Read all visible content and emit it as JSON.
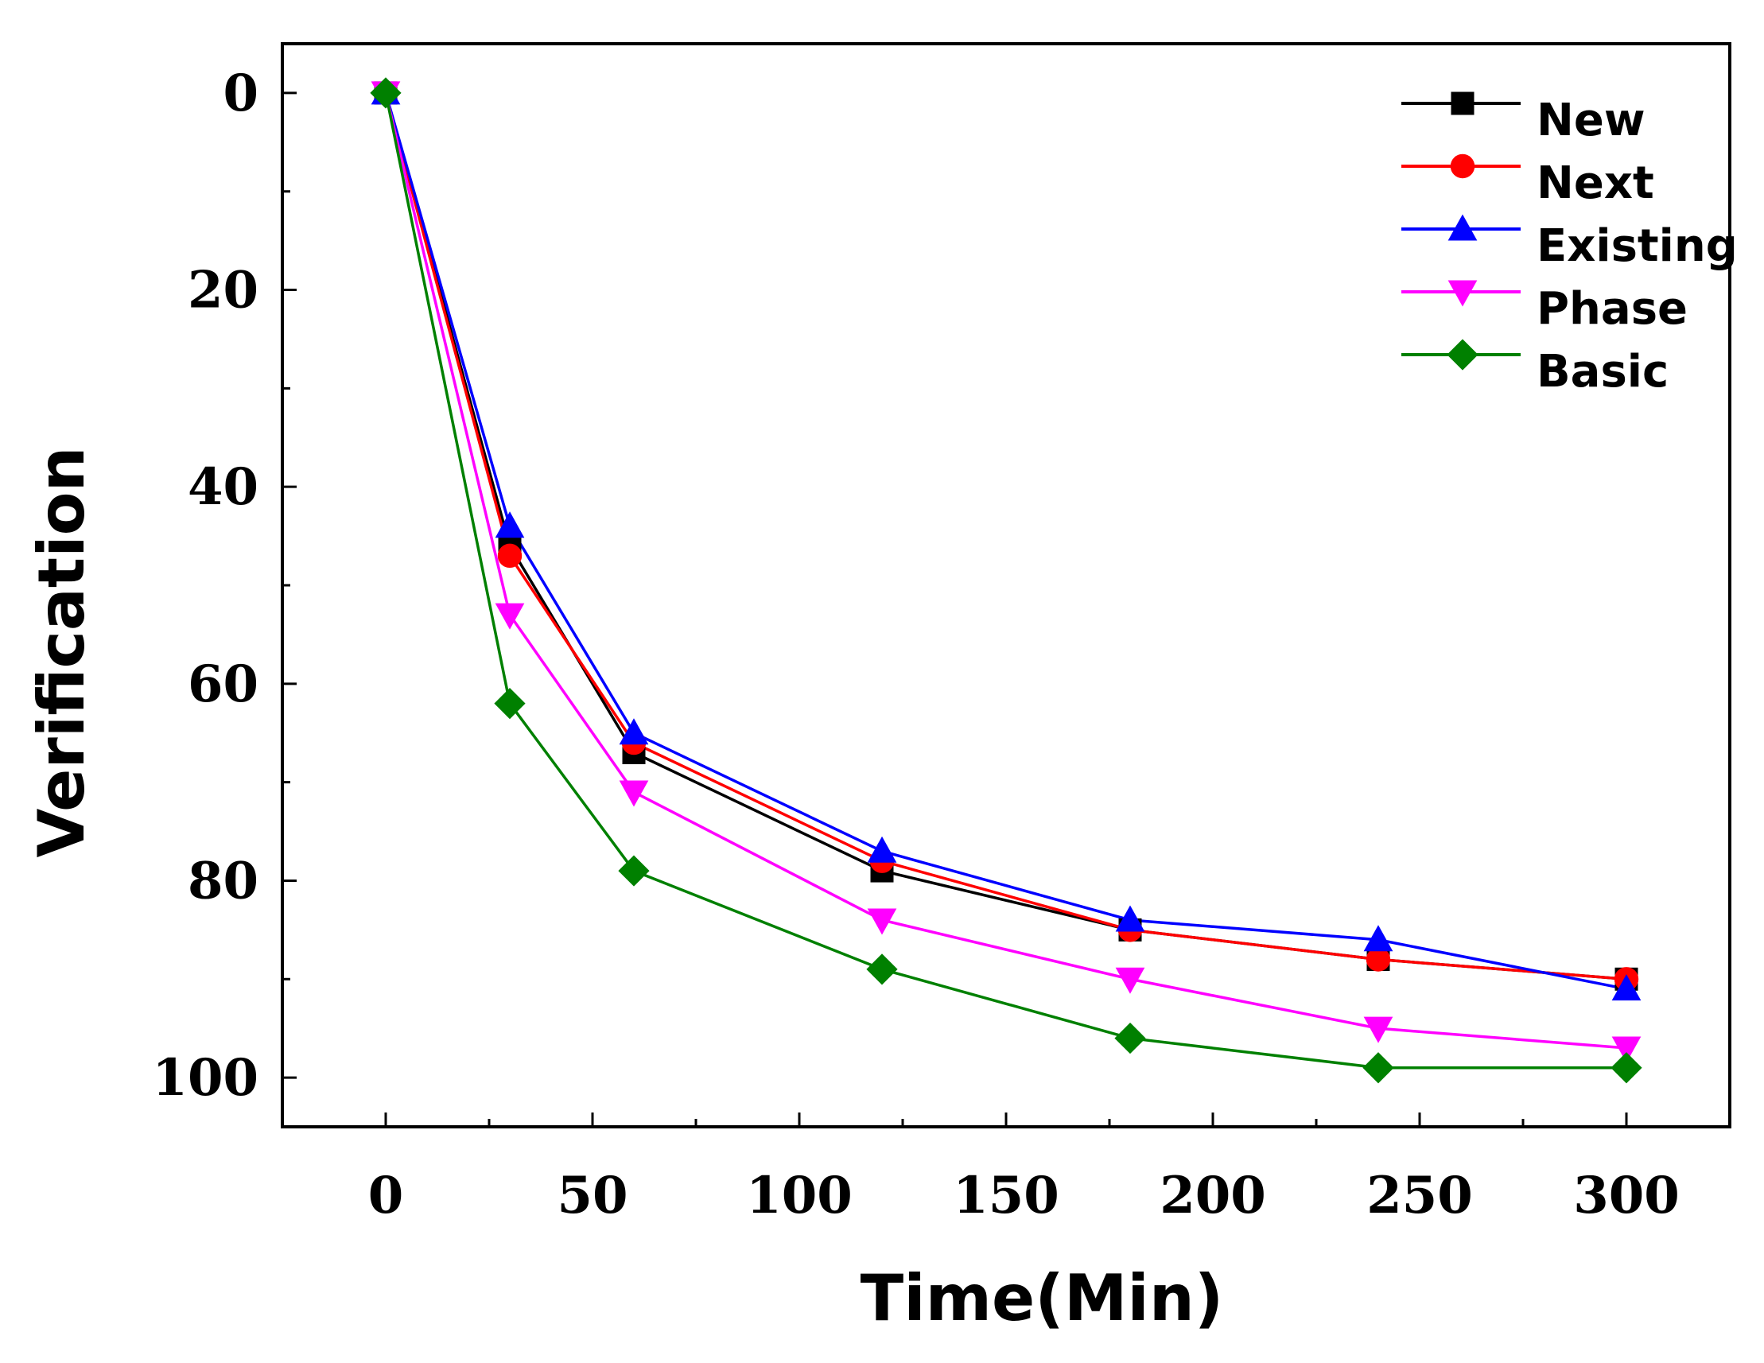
{
  "chart_data": {
    "type": "line",
    "title": "",
    "xlabel": "Time(Min)",
    "ylabel": "Verification",
    "xlim": [
      -25,
      325
    ],
    "ylim": [
      -5,
      105
    ],
    "y_inverted": true,
    "x_ticks": [
      0,
      50,
      100,
      150,
      200,
      250,
      300
    ],
    "y_ticks": [
      0,
      20,
      40,
      60,
      80,
      100
    ],
    "legend_position": "top-right",
    "grid": false,
    "x": [
      0,
      30,
      60,
      120,
      180,
      240,
      300
    ],
    "series": [
      {
        "name": "New",
        "color": "#000000",
        "marker": "square",
        "values": [
          0,
          46,
          67,
          79,
          85,
          88,
          90
        ]
      },
      {
        "name": "Next",
        "color": "#ff0000",
        "marker": "circle",
        "values": [
          0,
          47,
          66,
          78,
          85,
          88,
          90
        ]
      },
      {
        "name": "Existing",
        "color": "#0000ff",
        "marker": "triangle-up",
        "values": [
          0,
          44,
          65,
          77,
          84,
          86,
          91
        ]
      },
      {
        "name": "Phase",
        "color": "#ff00ff",
        "marker": "triangle-down",
        "values": [
          0,
          53,
          71,
          84,
          90,
          95,
          97
        ]
      },
      {
        "name": "Basic",
        "color": "#008000",
        "marker": "diamond",
        "values": [
          0,
          62,
          79,
          89,
          96,
          99,
          99
        ]
      }
    ]
  }
}
